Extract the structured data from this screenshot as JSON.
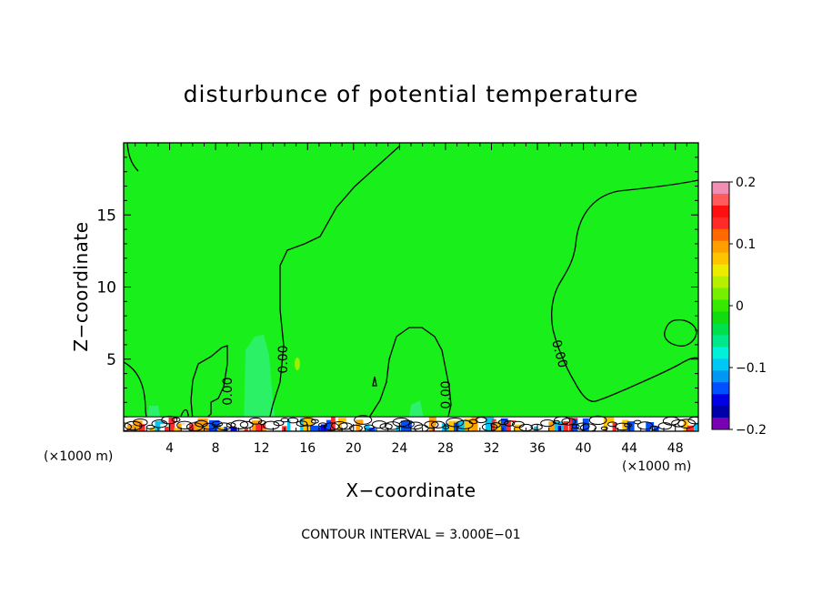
{
  "chart_data": {
    "type": "heatmap",
    "title": "disturbunce of potential temperature",
    "xlabel": "X−coordinate",
    "ylabel": "Z−coordinate",
    "x_unit_left": "(×1000 m)",
    "x_unit_right": "(×1000 m)",
    "footer": "CONTOUR INTERVAL = 3.000E−01",
    "xlim": [
      0,
      50
    ],
    "ylim": [
      0,
      20
    ],
    "x_ticks": [
      4,
      8,
      12,
      16,
      20,
      24,
      28,
      32,
      36,
      40,
      44,
      48
    ],
    "y_ticks": [
      5,
      10,
      15
    ],
    "field_background_value": 0.0,
    "contour_labels": [
      "0.00",
      "0.00",
      "0.00",
      "0.00"
    ],
    "colorbar": {
      "min": -0.2,
      "max": 0.2,
      "tick_values": [
        0.2,
        0.1,
        0,
        -0.1,
        -0.2
      ],
      "tick_labels": [
        "0.2",
        "0.1",
        "0",
        "−0.1",
        "−0.2"
      ],
      "colors": [
        "#f18eb4",
        "#ff5b5b",
        "#ff1010",
        "#ff2a2a",
        "#ff6a00",
        "#ff9f00",
        "#ffc400",
        "#ecec00",
        "#b6f000",
        "#74f000",
        "#34e800",
        "#10dc10",
        "#00e04c",
        "#00e88c",
        "#00f0d8",
        "#00c8f4",
        "#0096f4",
        "#0050ff",
        "#0000e6",
        "#0000a8",
        "#7a00b4"
      ]
    },
    "colors": {
      "field": "#19f01b",
      "field_dark": "#1fe82a",
      "cyan_patch": "#3af2a4",
      "line": "#000000"
    }
  }
}
